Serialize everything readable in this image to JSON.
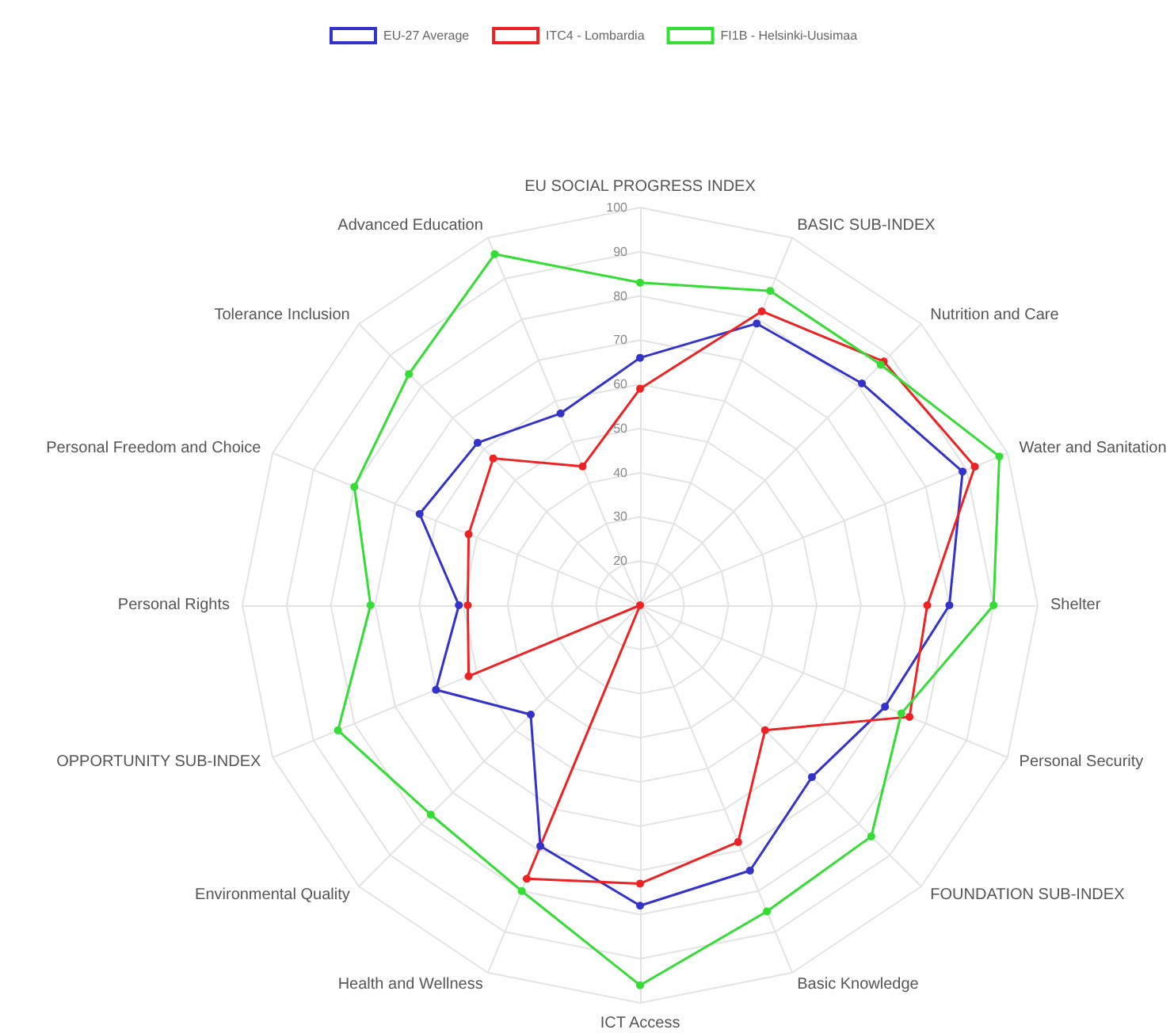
{
  "chart_data": {
    "type": "radar",
    "categories": [
      "EU SOCIAL PROGRESS INDEX",
      "BASIC SUB-INDEX",
      "Nutrition and Care",
      "Water and Sanitation",
      "Shelter",
      "Personal Security",
      "FOUNDATION SUB-INDEX",
      "Basic Knowledge",
      "ICT Access",
      "Health and Wellness",
      "Environmental Quality",
      "OPPORTUNITY SUB-INDEX",
      "Personal Rights",
      "Personal Freedom and Choice",
      "Tolerance Inclusion",
      "Advanced Education"
    ],
    "series": [
      {
        "name": "EU-27 Average",
        "color": "#3333cc",
        "values": [
          66,
          79,
          81,
          89,
          80,
          70,
          65,
          75,
          78,
          69,
          45,
          60,
          51,
          64,
          62,
          57
        ]
      },
      {
        "name": "ITC4 - Lombardia",
        "color": "#ee2222",
        "values": [
          59,
          82,
          88,
          92,
          75,
          76,
          50,
          68,
          73,
          77,
          10,
          52,
          49,
          52,
          57,
          44
        ]
      },
      {
        "name": "FI1B - Helsinki-Uusimaa",
        "color": "#33dd33",
        "values": [
          83,
          87,
          87,
          98,
          90,
          74,
          84,
          85,
          96,
          80,
          77,
          84,
          71,
          80,
          84,
          96
        ]
      }
    ],
    "ylim": [
      10,
      100
    ],
    "yticks": [
      20,
      30,
      40,
      50,
      60,
      70,
      80,
      90,
      100
    ],
    "grid": true,
    "legend": "top",
    "marker": "circle",
    "line_style": "solid"
  }
}
